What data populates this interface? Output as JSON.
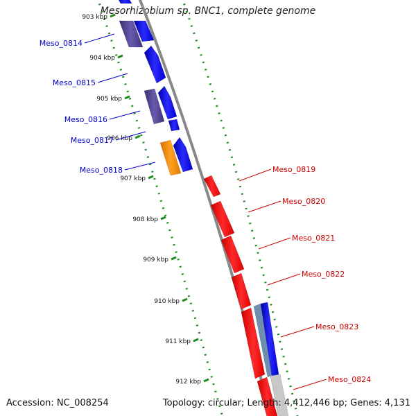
{
  "title": "Mesorhizobium sp. BNC1, complete genome",
  "footer": {
    "accession": "Accession: NC_008254",
    "summary": "Topology: circular; Length: 4,412,446 bp; Genes: 4,131"
  },
  "colors": {
    "forward_cds": "#0000ee",
    "forward_dark": "#4a3c8c",
    "forward_orange": "#ff8c00",
    "reverse_cds": "#ff0000",
    "backbone": "#888888",
    "gc_dots": "#1a8a1a",
    "left_label": "#0000cc",
    "right_label": "#cc0000"
  },
  "ticks": [
    "903 kbp",
    "904 kbp",
    "905 kbp",
    "906 kbp",
    "907 kbp",
    "908 kbp",
    "909 kbp",
    "910 kbp",
    "911 kbp",
    "912 kbp"
  ],
  "left_genes": [
    "Meso_0814",
    "Meso_0815",
    "Meso_0816",
    "Meso_0817",
    "Meso_0818"
  ],
  "right_genes": [
    "Meso_0819",
    "Meso_0820",
    "Meso_0821",
    "Meso_0822",
    "Meso_0823",
    "Meso_0824"
  ]
}
